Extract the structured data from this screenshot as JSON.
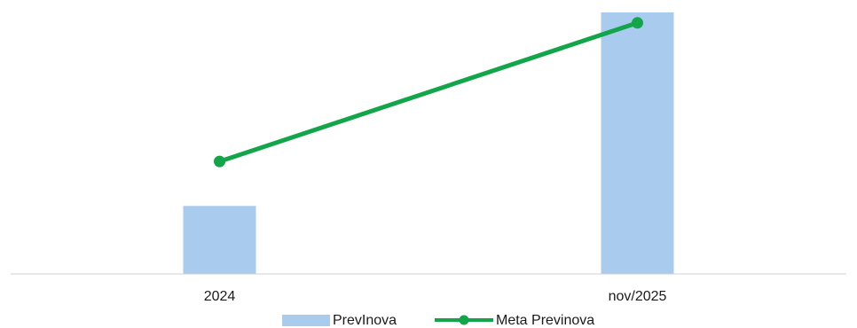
{
  "chart_data": {
    "type": "bar",
    "categories": [
      "2024",
      "nov/2025"
    ],
    "series": [
      {
        "name": "PrevInova",
        "type": "bar",
        "values": [
          26,
          100
        ],
        "color": "#a9cbee"
      },
      {
        "name": "Meta Previnova",
        "type": "line",
        "values": [
          43,
          96
        ],
        "color": "#12a54a"
      }
    ],
    "ylim": [
      0,
      100
    ],
    "grid": false,
    "legend": "bottom"
  }
}
